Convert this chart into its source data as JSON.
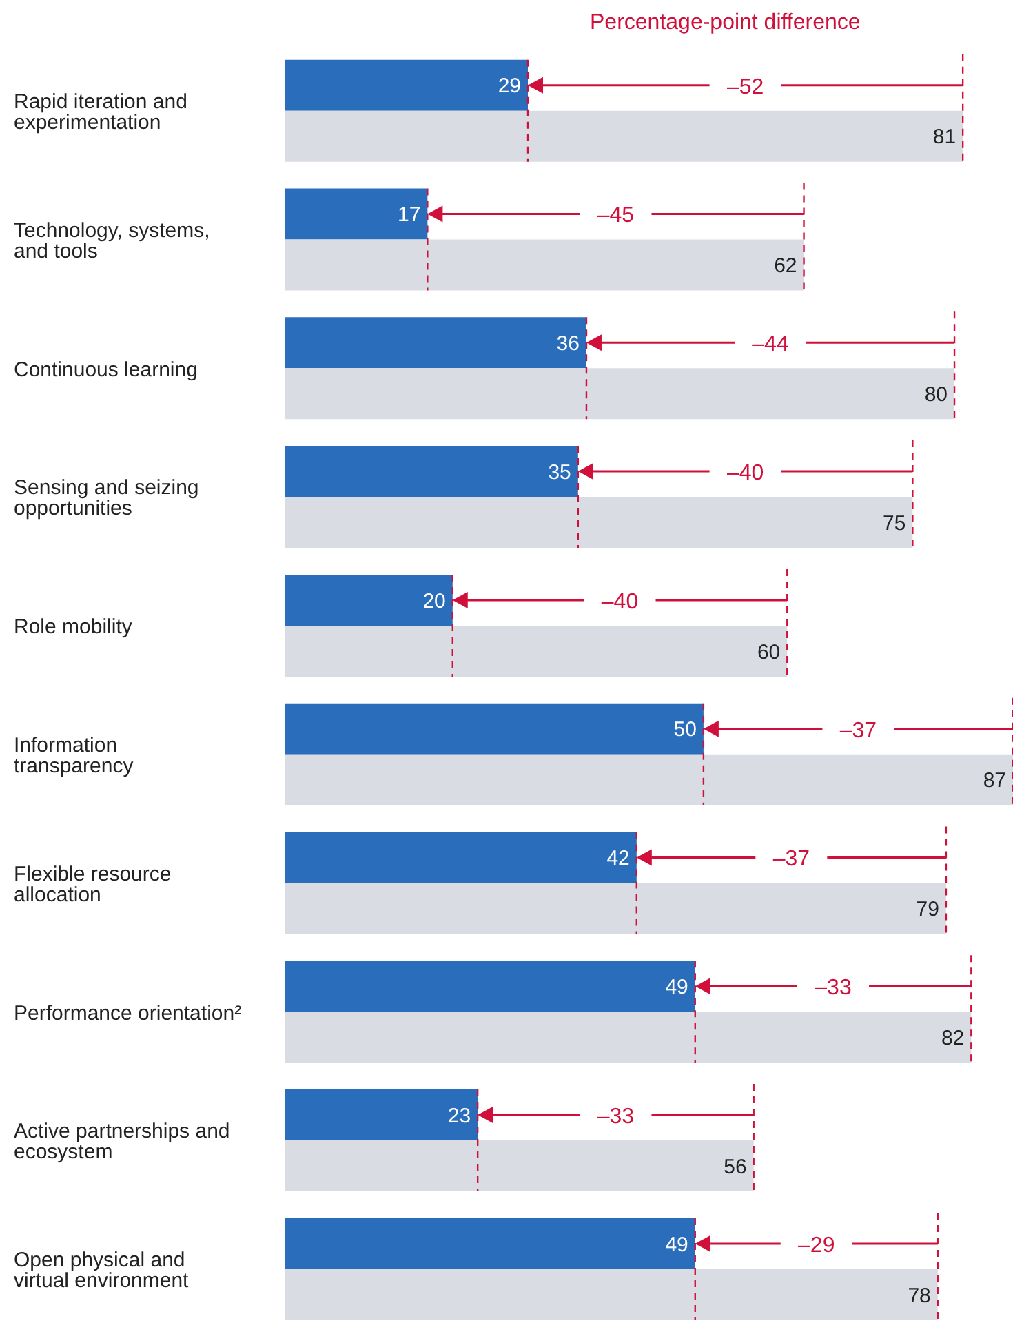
{
  "chart_data": {
    "type": "bar",
    "orientation": "horizontal",
    "categories": [
      "Rapid iteration and experimentation",
      "Technology, systems, and tools",
      "Continuous learning",
      "Sensing and seizing opportunities",
      "Role mobility",
      "Information transparency",
      "Flexible resource allocation",
      "Performance orientation²",
      "Active partnerships and ecosystem",
      "Open physical and virtual environment"
    ],
    "series": [
      {
        "color": "#2a6ebb",
        "values": [
          29,
          17,
          36,
          35,
          20,
          50,
          42,
          49,
          23,
          49
        ]
      },
      {
        "color": "#d9dde3",
        "values": [
          81,
          62,
          80,
          75,
          60,
          87,
          79,
          82,
          56,
          78
        ]
      }
    ],
    "data_labels": true,
    "annotations": [
      "Percentage-point difference",
      "–52",
      "–45",
      "–44",
      "–40",
      "–40",
      "–37",
      "–37",
      "–33",
      "–33",
      "–29"
    ]
  }
}
